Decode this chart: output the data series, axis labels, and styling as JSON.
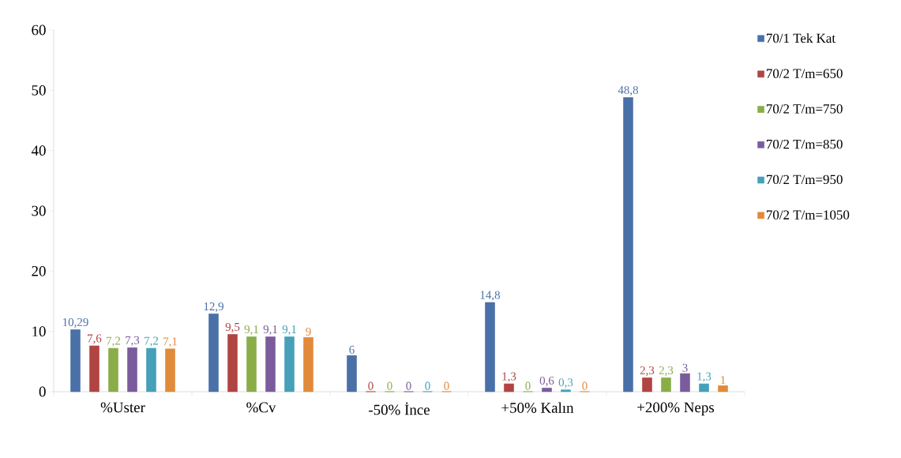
{
  "chart_data": {
    "type": "bar",
    "categories": [
      "%Uster",
      "%Cv",
      "-50% İnce",
      "+50% Kalın",
      "+200% Neps"
    ],
    "ylim": [
      0,
      60
    ],
    "yticks": [
      0,
      10,
      20,
      30,
      40,
      50,
      60
    ],
    "grid": false,
    "legend": "right",
    "series": [
      {
        "name": "70/1 Tek Kat",
        "color": "#4a70a8",
        "values": [
          10.29,
          12.9,
          6,
          14.8,
          48.8
        ],
        "value_labels": [
          "10,29",
          "12,9",
          "6",
          "14,8",
          "48,8"
        ]
      },
      {
        "name": "70/2 T/m=650",
        "color": "#b04442",
        "values": [
          7.6,
          9.5,
          0,
          1.3,
          2.3
        ],
        "value_labels": [
          "7,6",
          "9,5",
          "0",
          "1,3",
          "2,3"
        ]
      },
      {
        "name": "70/2 T/m=750",
        "color": "#8aad48",
        "values": [
          7.2,
          9.1,
          0,
          0,
          2.3
        ],
        "value_labels": [
          "7,2",
          "9,1",
          "0",
          "0",
          "2,3"
        ]
      },
      {
        "name": "70/2 T/m=850",
        "color": "#7a5c9c",
        "values": [
          7.3,
          9.1,
          0,
          0.6,
          3
        ],
        "value_labels": [
          "7,3",
          "9,1",
          "0",
          "0,6",
          "3"
        ]
      },
      {
        "name": "70/2 T/m=950",
        "color": "#45a0b8",
        "values": [
          7.2,
          9.1,
          0,
          0.3,
          1.3
        ],
        "value_labels": [
          "7,2",
          "9,1",
          "0",
          "0,3",
          "1,3"
        ]
      },
      {
        "name": "70/2 T/m=1050",
        "color": "#e08a3a",
        "values": [
          7.1,
          9,
          0,
          0,
          1
        ],
        "value_labels": [
          "7,1",
          "9",
          "0",
          "0",
          "1"
        ]
      }
    ]
  }
}
